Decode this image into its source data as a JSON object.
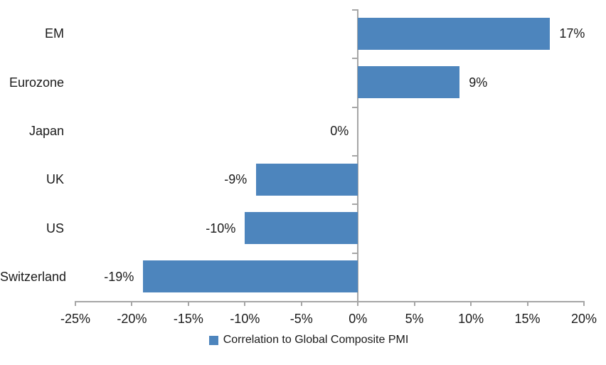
{
  "chart_data": {
    "type": "bar",
    "orientation": "horizontal",
    "categories": [
      "EM",
      "Eurozone",
      "Japan",
      "UK",
      "US",
      "Switzerland"
    ],
    "values": [
      17,
      9,
      0,
      -9,
      -10,
      -19
    ],
    "data_labels": [
      "17%",
      "9%",
      "0%",
      "-9%",
      "-10%",
      "-19%"
    ],
    "series_name": "Correlation to Global Composite PMI",
    "xlim": [
      -25,
      20
    ],
    "x_tick_step": 5,
    "x_tick_labels": [
      "-25%",
      "-20%",
      "-15%",
      "-10%",
      "-5%",
      "0%",
      "5%",
      "10%",
      "15%",
      "20%"
    ],
    "grid": false,
    "legend_position": "bottom",
    "colors": {
      "bar": "#4D85BD",
      "axis": "#A6A6A6",
      "text": "#1A1A1A"
    }
  },
  "legend": {
    "label": "Correlation to Global Composite PMI"
  }
}
